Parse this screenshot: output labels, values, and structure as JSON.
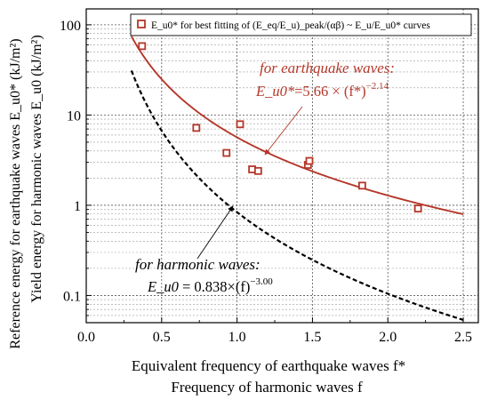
{
  "chart_data": {
    "type": "scatter",
    "xlabel_lines": [
      "Equivalent frequency of earthquake waves f*",
      "Frequency of harmonic waves f"
    ],
    "ylabel_lines": [
      "Reference energy for earthquake waves E_u0* (kJ/m²)",
      "Yield energy for harmonic waves E_u0 (kJ/m²)"
    ],
    "xlim": [
      0.0,
      2.6
    ],
    "ylim": [
      0.05,
      150
    ],
    "y_scale": "log",
    "x_ticks": [
      0.0,
      0.5,
      1.0,
      1.5,
      2.0,
      2.5
    ],
    "x_tick_labels": [
      "0.0",
      "0.5",
      "1.0",
      "1.5",
      "2.0",
      "2.5"
    ],
    "y_ticks": [
      0.1,
      1,
      10,
      100
    ],
    "y_tick_labels": [
      "0.1",
      "1",
      "10",
      "100"
    ],
    "grid": true,
    "legend": {
      "position": "top-right",
      "entries": [
        "E_u0* for best fitting of (E_eq/E_u)_peak/(αβ) ~ E_u/E_u0* curves"
      ]
    },
    "series": [
      {
        "name": "E_u0* for best fitting of (E_eq/E_u)_peak/(αβ) ~ E_u/E_u0* curves",
        "kind": "scatter",
        "color": "#b5372a",
        "x": [
          0.37,
          0.73,
          0.93,
          1.02,
          1.1,
          1.14,
          1.47,
          1.48,
          1.83,
          2.2
        ],
        "y": [
          58,
          7.2,
          3.8,
          7.9,
          2.5,
          2.4,
          2.8,
          3.1,
          1.65,
          0.92
        ]
      },
      {
        "name": "for earthquake waves",
        "kind": "line",
        "style": "solid",
        "color": "#b5372a",
        "x_range": [
          0.3,
          2.5
        ],
        "coefficient": 5.66,
        "exponent": -2.14
      },
      {
        "name": "for harmonic waves",
        "kind": "line",
        "style": "dashed",
        "color": "#000000",
        "x_range": [
          0.3,
          2.5
        ],
        "coefficient": 0.838,
        "exponent": -3.0
      }
    ],
    "annotations": [
      {
        "title": "for earthquake waves:",
        "formula_lhs": "E_u0*",
        "formula_rhs": "=5.66 × (f*)",
        "formula_exp": "−2.14",
        "color": "#b5372a"
      },
      {
        "title": "for harmonic waves:",
        "formula_lhs": "E_u0",
        "formula_rhs": " = 0.838×(f)",
        "formula_exp": "−3.00",
        "color": "#000000"
      }
    ]
  }
}
